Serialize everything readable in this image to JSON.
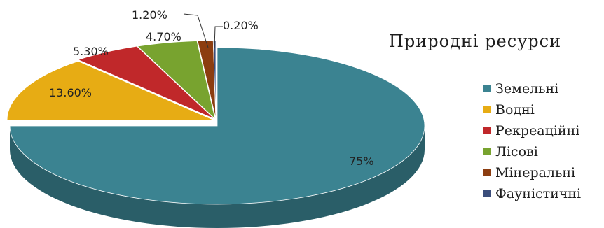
{
  "chart_data": {
    "type": "pie",
    "title": "Природні  ресурси",
    "categories": [
      "Земельні",
      "Водні",
      "Рекреаційні",
      "Лісові",
      "Мінеральні",
      "Фауністичні"
    ],
    "values": [
      75,
      13.6,
      5.3,
      4.7,
      1.2,
      0.2
    ],
    "value_labels": [
      "75%",
      "13.60%",
      "5.30%",
      "4.70%",
      "1.20%",
      "0.20%"
    ],
    "colors": [
      "#3b8391",
      "#e7ac14",
      "#c0282a",
      "#78a32f",
      "#8c3d10",
      "#3a4d7b"
    ],
    "legend_position": "right",
    "style": "3d-exploded-pie"
  }
}
